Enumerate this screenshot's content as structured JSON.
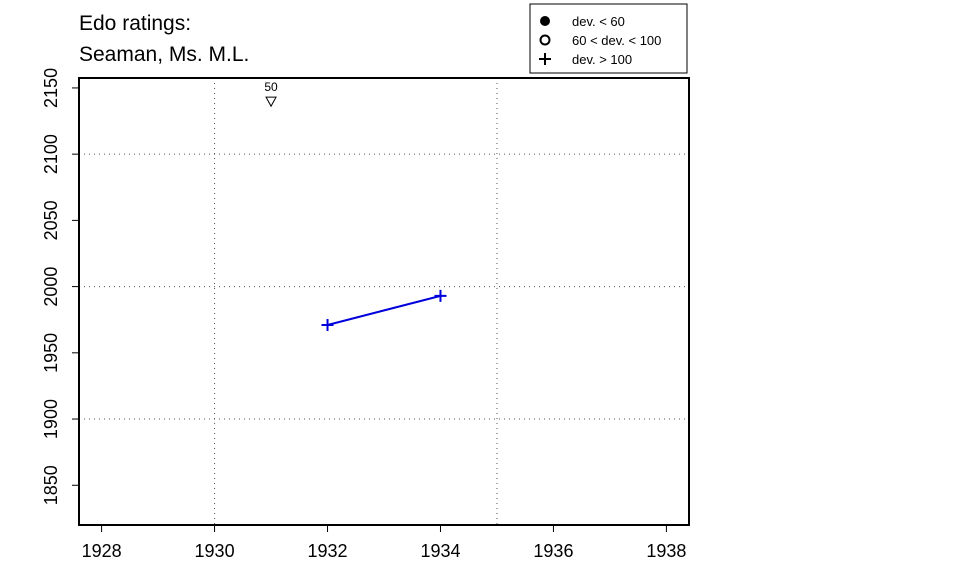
{
  "chart_data": {
    "type": "line",
    "title": [
      "Edo ratings:",
      "Seaman, Ms. M.L."
    ],
    "x": [
      1932,
      1934
    ],
    "series": [
      {
        "name": "Seaman, Ms. M.L.",
        "color": "#0000dd",
        "values": [
          1971,
          1993
        ]
      }
    ],
    "xlim": [
      1927.6,
      1938.4
    ],
    "xticks": [
      1928,
      1930,
      1932,
      1934,
      1936,
      1938
    ],
    "ylim": [
      1820,
      2157.5
    ],
    "yticks": [
      1850,
      1900,
      1950,
      2000,
      2050,
      2100,
      2150
    ],
    "xgrid": [
      1930,
      1935
    ],
    "ygrid": [
      1900,
      2000,
      2100
    ],
    "annotations": [
      {
        "text": "50",
        "x": 1931,
        "y": 2140
      }
    ],
    "legend": [
      "dev. < 60",
      "60 < dev. < 100",
      "dev. > 100"
    ],
    "legend_position": "top-right"
  }
}
